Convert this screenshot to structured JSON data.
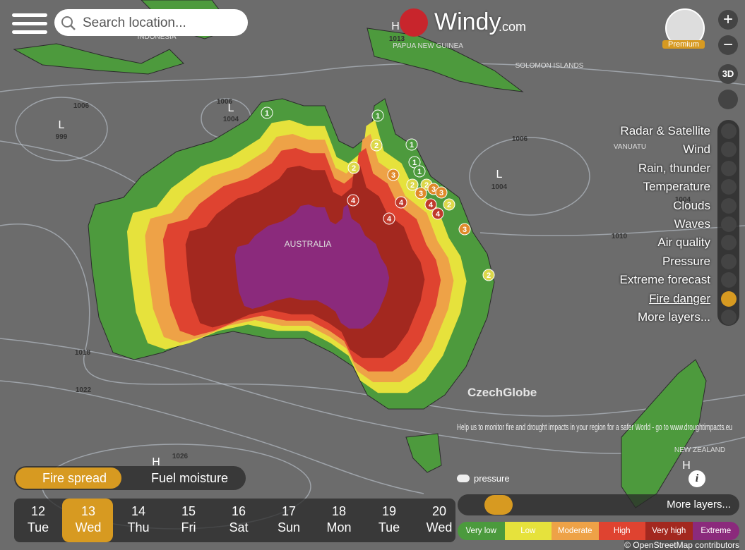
{
  "header": {
    "search_placeholder": "Search location...",
    "logo": "Windy",
    "logo_suffix": ".com",
    "premium": "Premium"
  },
  "controls": {
    "zoom_in": "+",
    "zoom_out": "−",
    "view_3d": "3D"
  },
  "layers": [
    "Radar & Satellite",
    "Wind",
    "Rain, thunder",
    "Temperature",
    "Clouds",
    "Waves",
    "Air quality",
    "Pressure",
    "Extreme forecast",
    "Fire danger",
    "More layers..."
  ],
  "map": {
    "places": [
      "INDONESIA",
      "PAPUA NEW GUINEA",
      "SOLOMON ISLANDS",
      "VANUATU",
      "AUSTRALIA",
      "NEW ZEALAND"
    ],
    "pressure_labels": [
      "H",
      1013,
      1006,
      "L",
      999,
      1006,
      "L",
      1004,
      1006,
      "L",
      1004,
      1004,
      1010,
      1018,
      1022,
      1026,
      "H",
      "H"
    ],
    "fire_markers": [
      1,
      1,
      2,
      1,
      1,
      1,
      2,
      3,
      2,
      2,
      3,
      3,
      3,
      4,
      4,
      2,
      4,
      4,
      4,
      3,
      2
    ],
    "watermark": "CzechGlobe",
    "notice": "Help us to monitor fire and drought impacts in your region for a safer World - go to www.droughtimpacts.eu"
  },
  "overlay_tabs": [
    "Fire spread",
    "Fuel moisture"
  ],
  "pressure_toggle": "pressure",
  "timeline": {
    "days": [
      {
        "date": 12,
        "weekday": "Tue"
      },
      {
        "date": 13,
        "weekday": "Wed"
      },
      {
        "date": 14,
        "weekday": "Thu"
      },
      {
        "date": 15,
        "weekday": "Fri"
      },
      {
        "date": 16,
        "weekday": "Sat"
      },
      {
        "date": 17,
        "weekday": "Sun"
      },
      {
        "date": 18,
        "weekday": "Mon"
      },
      {
        "date": 19,
        "weekday": "Tue"
      },
      {
        "date": 20,
        "weekday": "Wed"
      }
    ]
  },
  "toolbar": {
    "more_layers": "More layers..."
  },
  "legend": [
    {
      "label": "Very low",
      "color": "#4b9a3d"
    },
    {
      "label": "Low",
      "color": "#e6e23c"
    },
    {
      "label": "Moderate",
      "color": "#eea247"
    },
    {
      "label": "High",
      "color": "#df4330"
    },
    {
      "label": "Very high",
      "color": "#a3281f"
    },
    {
      "label": "Extreme",
      "color": "#8b2a7c"
    }
  ],
  "attribution": "© OpenStreetMap contributors"
}
